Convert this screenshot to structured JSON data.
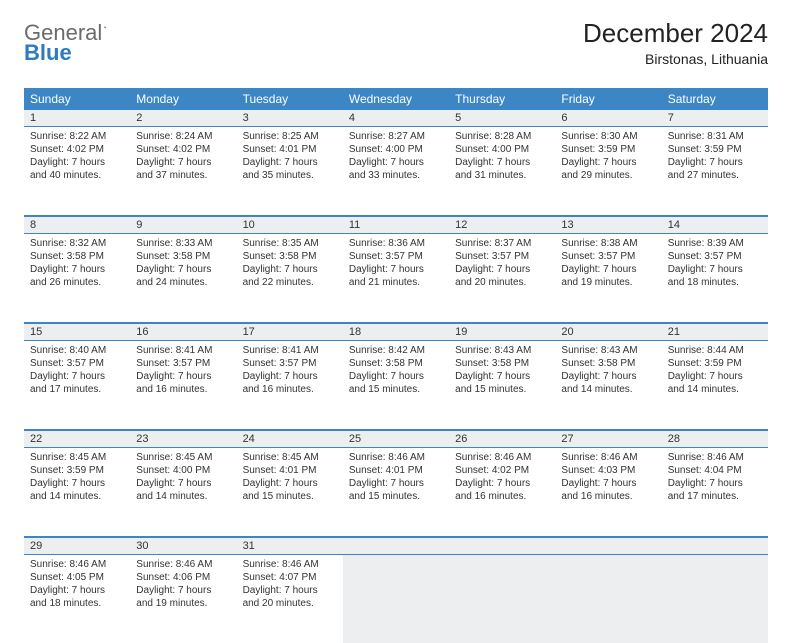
{
  "brand": {
    "word1": "General",
    "word2": "Blue"
  },
  "title": {
    "month": "December 2024",
    "location": "Birstonas, Lithuania"
  },
  "colors": {
    "header_bg": "#3d86c6",
    "header_text": "#ffffff",
    "numrow_bg": "#eceef0",
    "border": "#3d86c6",
    "text": "#333333",
    "background": "#ffffff"
  },
  "dow": [
    "Sunday",
    "Monday",
    "Tuesday",
    "Wednesday",
    "Thursday",
    "Friday",
    "Saturday"
  ],
  "weeks": [
    [
      {
        "n": "1",
        "sr": "Sunrise: 8:22 AM",
        "ss": "Sunset: 4:02 PM",
        "d1": "Daylight: 7 hours",
        "d2": "and 40 minutes."
      },
      {
        "n": "2",
        "sr": "Sunrise: 8:24 AM",
        "ss": "Sunset: 4:02 PM",
        "d1": "Daylight: 7 hours",
        "d2": "and 37 minutes."
      },
      {
        "n": "3",
        "sr": "Sunrise: 8:25 AM",
        "ss": "Sunset: 4:01 PM",
        "d1": "Daylight: 7 hours",
        "d2": "and 35 minutes."
      },
      {
        "n": "4",
        "sr": "Sunrise: 8:27 AM",
        "ss": "Sunset: 4:00 PM",
        "d1": "Daylight: 7 hours",
        "d2": "and 33 minutes."
      },
      {
        "n": "5",
        "sr": "Sunrise: 8:28 AM",
        "ss": "Sunset: 4:00 PM",
        "d1": "Daylight: 7 hours",
        "d2": "and 31 minutes."
      },
      {
        "n": "6",
        "sr": "Sunrise: 8:30 AM",
        "ss": "Sunset: 3:59 PM",
        "d1": "Daylight: 7 hours",
        "d2": "and 29 minutes."
      },
      {
        "n": "7",
        "sr": "Sunrise: 8:31 AM",
        "ss": "Sunset: 3:59 PM",
        "d1": "Daylight: 7 hours",
        "d2": "and 27 minutes."
      }
    ],
    [
      {
        "n": "8",
        "sr": "Sunrise: 8:32 AM",
        "ss": "Sunset: 3:58 PM",
        "d1": "Daylight: 7 hours",
        "d2": "and 26 minutes."
      },
      {
        "n": "9",
        "sr": "Sunrise: 8:33 AM",
        "ss": "Sunset: 3:58 PM",
        "d1": "Daylight: 7 hours",
        "d2": "and 24 minutes."
      },
      {
        "n": "10",
        "sr": "Sunrise: 8:35 AM",
        "ss": "Sunset: 3:58 PM",
        "d1": "Daylight: 7 hours",
        "d2": "and 22 minutes."
      },
      {
        "n": "11",
        "sr": "Sunrise: 8:36 AM",
        "ss": "Sunset: 3:57 PM",
        "d1": "Daylight: 7 hours",
        "d2": "and 21 minutes."
      },
      {
        "n": "12",
        "sr": "Sunrise: 8:37 AM",
        "ss": "Sunset: 3:57 PM",
        "d1": "Daylight: 7 hours",
        "d2": "and 20 minutes."
      },
      {
        "n": "13",
        "sr": "Sunrise: 8:38 AM",
        "ss": "Sunset: 3:57 PM",
        "d1": "Daylight: 7 hours",
        "d2": "and 19 minutes."
      },
      {
        "n": "14",
        "sr": "Sunrise: 8:39 AM",
        "ss": "Sunset: 3:57 PM",
        "d1": "Daylight: 7 hours",
        "d2": "and 18 minutes."
      }
    ],
    [
      {
        "n": "15",
        "sr": "Sunrise: 8:40 AM",
        "ss": "Sunset: 3:57 PM",
        "d1": "Daylight: 7 hours",
        "d2": "and 17 minutes."
      },
      {
        "n": "16",
        "sr": "Sunrise: 8:41 AM",
        "ss": "Sunset: 3:57 PM",
        "d1": "Daylight: 7 hours",
        "d2": "and 16 minutes."
      },
      {
        "n": "17",
        "sr": "Sunrise: 8:41 AM",
        "ss": "Sunset: 3:57 PM",
        "d1": "Daylight: 7 hours",
        "d2": "and 16 minutes."
      },
      {
        "n": "18",
        "sr": "Sunrise: 8:42 AM",
        "ss": "Sunset: 3:58 PM",
        "d1": "Daylight: 7 hours",
        "d2": "and 15 minutes."
      },
      {
        "n": "19",
        "sr": "Sunrise: 8:43 AM",
        "ss": "Sunset: 3:58 PM",
        "d1": "Daylight: 7 hours",
        "d2": "and 15 minutes."
      },
      {
        "n": "20",
        "sr": "Sunrise: 8:43 AM",
        "ss": "Sunset: 3:58 PM",
        "d1": "Daylight: 7 hours",
        "d2": "and 14 minutes."
      },
      {
        "n": "21",
        "sr": "Sunrise: 8:44 AM",
        "ss": "Sunset: 3:59 PM",
        "d1": "Daylight: 7 hours",
        "d2": "and 14 minutes."
      }
    ],
    [
      {
        "n": "22",
        "sr": "Sunrise: 8:45 AM",
        "ss": "Sunset: 3:59 PM",
        "d1": "Daylight: 7 hours",
        "d2": "and 14 minutes."
      },
      {
        "n": "23",
        "sr": "Sunrise: 8:45 AM",
        "ss": "Sunset: 4:00 PM",
        "d1": "Daylight: 7 hours",
        "d2": "and 14 minutes."
      },
      {
        "n": "24",
        "sr": "Sunrise: 8:45 AM",
        "ss": "Sunset: 4:01 PM",
        "d1": "Daylight: 7 hours",
        "d2": "and 15 minutes."
      },
      {
        "n": "25",
        "sr": "Sunrise: 8:46 AM",
        "ss": "Sunset: 4:01 PM",
        "d1": "Daylight: 7 hours",
        "d2": "and 15 minutes."
      },
      {
        "n": "26",
        "sr": "Sunrise: 8:46 AM",
        "ss": "Sunset: 4:02 PM",
        "d1": "Daylight: 7 hours",
        "d2": "and 16 minutes."
      },
      {
        "n": "27",
        "sr": "Sunrise: 8:46 AM",
        "ss": "Sunset: 4:03 PM",
        "d1": "Daylight: 7 hours",
        "d2": "and 16 minutes."
      },
      {
        "n": "28",
        "sr": "Sunrise: 8:46 AM",
        "ss": "Sunset: 4:04 PM",
        "d1": "Daylight: 7 hours",
        "d2": "and 17 minutes."
      }
    ],
    [
      {
        "n": "29",
        "sr": "Sunrise: 8:46 AM",
        "ss": "Sunset: 4:05 PM",
        "d1": "Daylight: 7 hours",
        "d2": "and 18 minutes."
      },
      {
        "n": "30",
        "sr": "Sunrise: 8:46 AM",
        "ss": "Sunset: 4:06 PM",
        "d1": "Daylight: 7 hours",
        "d2": "and 19 minutes."
      },
      {
        "n": "31",
        "sr": "Sunrise: 8:46 AM",
        "ss": "Sunset: 4:07 PM",
        "d1": "Daylight: 7 hours",
        "d2": "and 20 minutes."
      },
      null,
      null,
      null,
      null
    ]
  ]
}
